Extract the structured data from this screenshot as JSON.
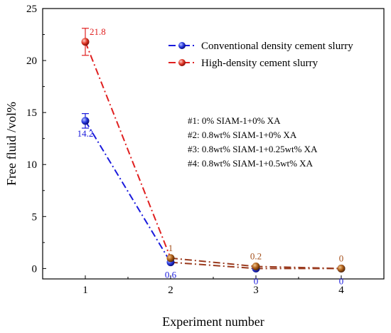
{
  "chart_data": {
    "type": "line",
    "xlabel": "Experiment number",
    "ylabel": "Free fluid /vol%",
    "x": [
      1,
      2,
      3,
      4
    ],
    "xlim": [
      0.5,
      4.5
    ],
    "ylim": [
      -1,
      25
    ],
    "xticks": [
      "1",
      "2",
      "3",
      "4"
    ],
    "yticks": [
      "0",
      "5",
      "10",
      "15",
      "20",
      "25"
    ],
    "legend_position": "top-right",
    "series": [
      {
        "name": "Conventional density cement slurry",
        "color": "#1a1adc",
        "values": [
          14.2,
          0.6,
          0,
          0
        ],
        "error": [
          0.7,
          0,
          0,
          0
        ],
        "labels": [
          "14.2",
          "0.6",
          "0",
          "0"
        ]
      },
      {
        "name": "High-density cement slurry",
        "color": "#e02020",
        "values": [
          21.8,
          1,
          0.2,
          0
        ],
        "error": [
          1.3,
          0,
          0,
          0
        ],
        "labels": [
          "21.8",
          "1",
          "0.2",
          "0"
        ]
      }
    ],
    "notes": [
      "#1: 0% SIAM-1+0% XA",
      "#2: 0.8wt% SIAM-1+0% XA",
      "#3: 0.8wt% SIAM-1+0.25wt% XA",
      "#4: 0.8wt% SIAM-1+0.5wt% XA"
    ]
  }
}
